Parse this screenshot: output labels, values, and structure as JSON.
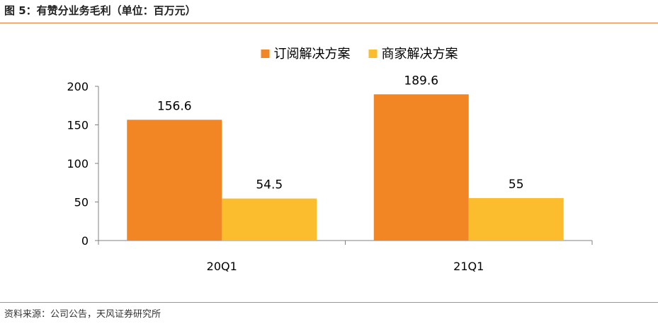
{
  "figure": {
    "title": "图 5：有赞分业务毛利（单位：百万元）",
    "source": "资料来源：公司公告，天风证券研究所"
  },
  "chart_data": {
    "type": "bar",
    "categories": [
      "20Q1",
      "21Q1"
    ],
    "series": [
      {
        "name": "订阅解决方案",
        "values": [
          156.6,
          189.6
        ],
        "labels": [
          "156.6",
          "189.6"
        ],
        "color": "#f28524"
      },
      {
        "name": "商家解决方案",
        "values": [
          54.5,
          55
        ],
        "labels": [
          "54.5",
          "55"
        ],
        "color": "#fbbd2d"
      }
    ],
    "ylim": [
      0,
      200
    ],
    "yticks": [
      0,
      50,
      100,
      150,
      200
    ],
    "grid": false,
    "legend": "top-center"
  }
}
